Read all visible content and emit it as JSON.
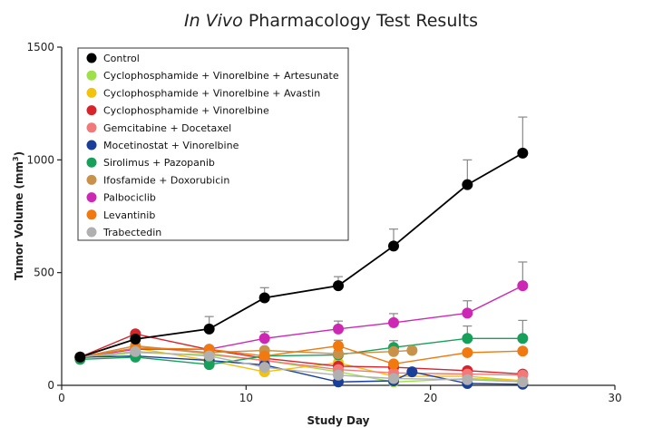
{
  "chart_data": {
    "type": "line",
    "title_italic": "In Vivo",
    "title_rest": " Pharmacology Test Results",
    "xlabel": "Study Day",
    "ylabel": "Tumor  Volume  (mm",
    "ylabel_sup": "3",
    "ylabel_close": ")",
    "xlim": [
      0,
      30
    ],
    "ylim": [
      0,
      1500
    ],
    "xticks": [
      0,
      10,
      20,
      30
    ],
    "yticks": [
      0,
      500,
      1000,
      1500
    ],
    "xtick_labels": [
      "0",
      "10",
      "20",
      "30"
    ],
    "ytick_labels": [
      "0",
      "500",
      "1000",
      "1500"
    ],
    "grid": false,
    "legend_position": "top-left",
    "series": [
      {
        "name": "Control",
        "color": "#000000",
        "x": [
          1,
          4,
          8,
          11,
          15,
          18,
          22,
          25
        ],
        "y": [
          125,
          205,
          250,
          388,
          442,
          618,
          890,
          1030
        ],
        "err": [
          0,
          0,
          55,
          45,
          40,
          75,
          110,
          160
        ]
      },
      {
        "name": "Cyclophosphamide + Vinorelbine + Artesunate",
        "color": "#9ee04a",
        "x": [
          1,
          4,
          8,
          11,
          15,
          18,
          22,
          25
        ],
        "y": [
          120,
          145,
          135,
          110,
          60,
          15,
          30,
          20
        ],
        "err": [
          0,
          0,
          0,
          0,
          0,
          0,
          0,
          0
        ]
      },
      {
        "name": "Cyclophosphamide + Vinorelbine + Avastin",
        "color": "#f3c20f",
        "x": [
          1,
          4,
          8,
          11,
          15,
          18,
          22,
          25
        ],
        "y": [
          125,
          165,
          110,
          60,
          100,
          40,
          40,
          20
        ],
        "err": [
          0,
          0,
          0,
          0,
          0,
          0,
          0,
          0
        ]
      },
      {
        "name": "Cyclophosphamide + Vinorelbine",
        "color": "#d7232a",
        "x": [
          1,
          4,
          8,
          11,
          15,
          18,
          22,
          25
        ],
        "y": [
          125,
          228,
          158,
          120,
          85,
          80,
          65,
          50
        ],
        "err": [
          0,
          0,
          0,
          0,
          0,
          0,
          0,
          0
        ]
      },
      {
        "name": "Gemcitabine + Docetaxel",
        "color": "#f07a7a",
        "x": [
          1,
          4,
          8,
          11,
          15,
          18,
          22,
          25
        ],
        "y": [
          125,
          175,
          140,
          110,
          70,
          55,
          50,
          45
        ],
        "err": [
          0,
          0,
          0,
          0,
          0,
          0,
          0,
          0
        ]
      },
      {
        "name": "Mocetinostat + Vinorelbine",
        "color": "#1a3f9a",
        "x": [
          1,
          4,
          8,
          11,
          15,
          18,
          19,
          22,
          25
        ],
        "y": [
          125,
          130,
          110,
          90,
          15,
          20,
          60,
          8,
          5
        ],
        "err": [
          0,
          0,
          0,
          0,
          0,
          0,
          0,
          0,
          0
        ]
      },
      {
        "name": "Sirolimus + Pazopanib",
        "color": "#16a05a",
        "x": [
          1,
          4,
          8,
          11,
          15,
          18,
          22,
          25
        ],
        "y": [
          115,
          125,
          92,
          130,
          135,
          168,
          208,
          208
        ],
        "err": [
          0,
          0,
          0,
          0,
          20,
          30,
          55,
          80
        ]
      },
      {
        "name": "Ifosfamide + Doxorubicin",
        "color": "#c8924a",
        "x": [
          1,
          4,
          8,
          11,
          15,
          18,
          19
        ],
        "y": [
          125,
          175,
          145,
          155,
          140,
          150,
          155
        ],
        "err": [
          0,
          0,
          0,
          0,
          0,
          0,
          0
        ]
      },
      {
        "name": "Palbociclib",
        "color": "#cc28b4",
        "x": [
          1,
          4,
          8,
          11,
          15,
          18,
          22,
          25
        ],
        "y": [
          125,
          160,
          160,
          208,
          250,
          278,
          320,
          442
        ],
        "err": [
          0,
          0,
          0,
          30,
          35,
          40,
          55,
          105
        ]
      },
      {
        "name": "Levantinib",
        "color": "#f07a10",
        "x": [
          1,
          4,
          8,
          11,
          15,
          18,
          22,
          25
        ],
        "y": [
          125,
          165,
          160,
          130,
          175,
          95,
          145,
          152
        ],
        "err": [
          0,
          0,
          0,
          0,
          25,
          0,
          0,
          0
        ]
      },
      {
        "name": "Trabectedin",
        "color": "#b0b0b0",
        "x": [
          1,
          4,
          8,
          11,
          15,
          18,
          22,
          25
        ],
        "y": [
          125,
          150,
          130,
          80,
          45,
          30,
          25,
          15
        ],
        "err": [
          0,
          0,
          0,
          0,
          0,
          0,
          0,
          0
        ]
      }
    ]
  }
}
